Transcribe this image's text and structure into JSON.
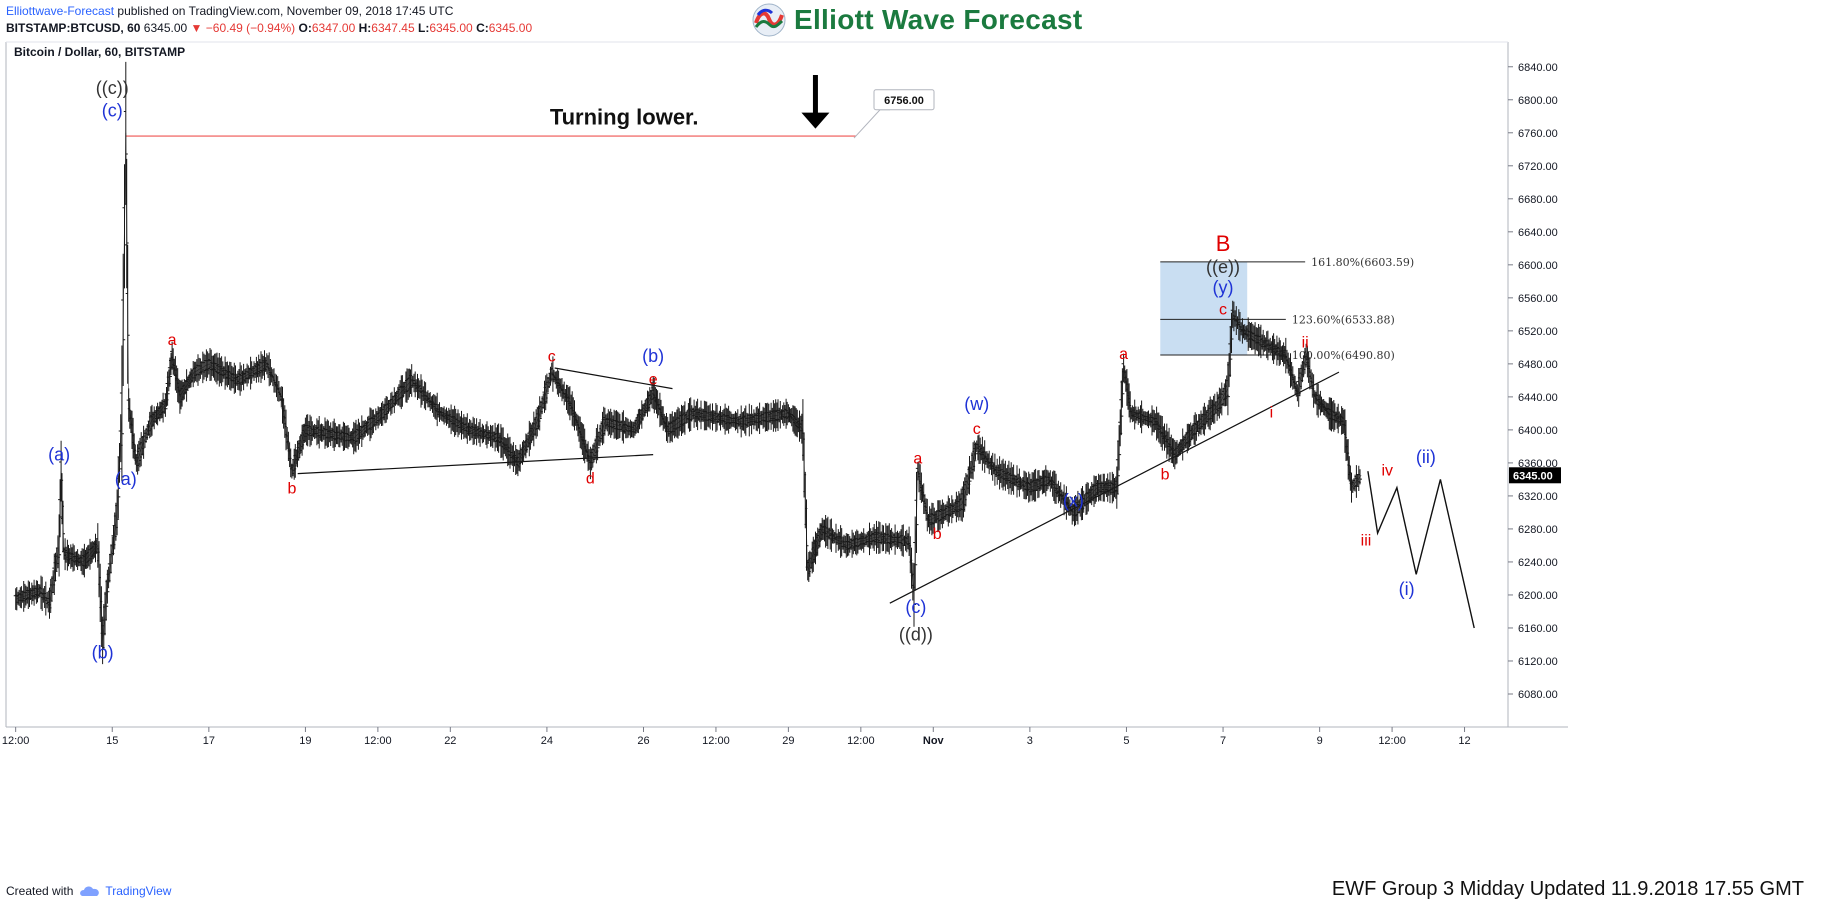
{
  "header": {
    "publisher": "Elliottwave-Forecast",
    "published_text": "published on TradingView.com, November 09, 2018 17:45 UTC",
    "symbol": "BITSTAMP:BTCUSD, 60",
    "last": "6345.00",
    "change": "−60.49 (−0.94%)",
    "open_label": "O:",
    "open": "6347.00",
    "high_label": "H:",
    "high": "6347.45",
    "low_label": "L:",
    "low": "6345.00",
    "close_label": "C:",
    "close": "6345.00"
  },
  "logo": {
    "text": "Elliott Wave Forecast"
  },
  "footer": {
    "created_with": "Created with",
    "tradingview": "TradingView",
    "update_note": "EWF Group 3 Midday Updated 11.9.2018 17.55 GMT"
  },
  "chart_data": {
    "type": "line",
    "title": "Bitcoin / Dollar, 60, BITSTAMP",
    "ylim": [
      6040,
      6870
    ],
    "y_ticks": [
      6080,
      6120,
      6160,
      6200,
      6240,
      6280,
      6320,
      6360,
      6400,
      6440,
      6480,
      6520,
      6560,
      6600,
      6640,
      6680,
      6720,
      6760,
      6800,
      6840
    ],
    "x_ticks": [
      {
        "t": 0,
        "label": "12:00"
      },
      {
        "t": 1,
        "label": "15"
      },
      {
        "t": 2,
        "label": "17"
      },
      {
        "t": 3,
        "label": "19"
      },
      {
        "t": 3.75,
        "label": "12:00"
      },
      {
        "t": 4.5,
        "label": "22"
      },
      {
        "t": 5.5,
        "label": "24"
      },
      {
        "t": 6.5,
        "label": "26"
      },
      {
        "t": 7.25,
        "label": "12:00"
      },
      {
        "t": 8,
        "label": "29"
      },
      {
        "t": 8.75,
        "label": "12:00"
      },
      {
        "t": 9.5,
        "label": "Nov"
      },
      {
        "t": 10.5,
        "label": "3"
      },
      {
        "t": 11.5,
        "label": "5"
      },
      {
        "t": 12.5,
        "label": "7"
      },
      {
        "t": 13.5,
        "label": "9"
      },
      {
        "t": 14.25,
        "label": "12:00"
      },
      {
        "t": 15,
        "label": "12"
      }
    ],
    "current_price": 6345.0,
    "price_path": [
      [
        0.0,
        6195
      ],
      [
        0.25,
        6205
      ],
      [
        0.35,
        6190
      ],
      [
        0.45,
        6260
      ],
      [
        0.47,
        6350
      ],
      [
        0.5,
        6250
      ],
      [
        0.7,
        6240
      ],
      [
        0.85,
        6260
      ],
      [
        0.9,
        6145
      ],
      [
        0.95,
        6210
      ],
      [
        1.05,
        6300
      ],
      [
        1.1,
        6420
      ],
      [
        1.14,
        6760
      ],
      [
        1.17,
        6430
      ],
      [
        1.25,
        6360
      ],
      [
        1.4,
        6410
      ],
      [
        1.55,
        6430
      ],
      [
        1.62,
        6490
      ],
      [
        1.7,
        6440
      ],
      [
        1.85,
        6470
      ],
      [
        2.0,
        6480
      ],
      [
        2.3,
        6460
      ],
      [
        2.6,
        6480
      ],
      [
        2.75,
        6440
      ],
      [
        2.86,
        6350
      ],
      [
        3.0,
        6400
      ],
      [
        3.5,
        6390
      ],
      [
        3.8,
        6420
      ],
      [
        4.1,
        6460
      ],
      [
        4.4,
        6420
      ],
      [
        4.7,
        6400
      ],
      [
        5.0,
        6390
      ],
      [
        5.2,
        6360
      ],
      [
        5.4,
        6410
      ],
      [
        5.55,
        6470
      ],
      [
        5.75,
        6430
      ],
      [
        5.95,
        6360
      ],
      [
        6.1,
        6410
      ],
      [
        6.4,
        6400
      ],
      [
        6.6,
        6445
      ],
      [
        6.75,
        6400
      ],
      [
        7.0,
        6420
      ],
      [
        7.5,
        6410
      ],
      [
        8.0,
        6420
      ],
      [
        8.15,
        6400
      ],
      [
        8.2,
        6230
      ],
      [
        8.35,
        6280
      ],
      [
        8.6,
        6260
      ],
      [
        8.9,
        6270
      ],
      [
        9.25,
        6265
      ],
      [
        9.3,
        6200
      ],
      [
        9.34,
        6350
      ],
      [
        9.45,
        6290
      ],
      [
        9.8,
        6310
      ],
      [
        9.95,
        6380
      ],
      [
        10.15,
        6350
      ],
      [
        10.5,
        6330
      ],
      [
        10.7,
        6340
      ],
      [
        10.95,
        6300
      ],
      [
        11.2,
        6330
      ],
      [
        11.4,
        6330
      ],
      [
        11.47,
        6475
      ],
      [
        11.55,
        6420
      ],
      [
        11.8,
        6410
      ],
      [
        12.0,
        6370
      ],
      [
        12.2,
        6400
      ],
      [
        12.45,
        6430
      ],
      [
        12.55,
        6450
      ],
      [
        12.6,
        6540
      ],
      [
        12.7,
        6520
      ],
      [
        13.0,
        6500
      ],
      [
        13.15,
        6490
      ],
      [
        13.27,
        6445
      ],
      [
        13.36,
        6490
      ],
      [
        13.45,
        6440
      ],
      [
        13.6,
        6420
      ],
      [
        13.75,
        6410
      ],
      [
        13.83,
        6330
      ],
      [
        13.93,
        6345
      ]
    ],
    "projection_path": [
      [
        14.0,
        6350
      ],
      [
        14.1,
        6275
      ],
      [
        14.3,
        6330
      ],
      [
        14.5,
        6225
      ],
      [
        14.75,
        6340
      ],
      [
        15.1,
        6160
      ]
    ],
    "resistance_line": {
      "price": 6756.0,
      "t_start": 1.14,
      "t_end": 8.7
    },
    "price_tag": {
      "label": "6756.00",
      "price": 6800
    },
    "annotation": {
      "text": "Turning lower.",
      "t": 6.3,
      "price": 6770
    },
    "arrow": {
      "t": 8.28,
      "price_top": 6830,
      "price_bottom": 6765
    },
    "trendlines": [
      {
        "t1": 2.92,
        "p1": 6347,
        "t2": 6.6,
        "p2": 6370
      },
      {
        "t1": 5.58,
        "p1": 6475,
        "t2": 6.8,
        "p2": 6450
      },
      {
        "t1": 9.05,
        "p1": 6190,
        "t2": 13.7,
        "p2": 6470
      }
    ],
    "fib_box": {
      "t_start": 11.85,
      "t_end": 12.75,
      "p_low": 6490.8,
      "p_high": 6603.59
    },
    "fib_levels": [
      {
        "label": "161.80%(6603.59)",
        "price": 6603.59,
        "t_end": 13.35
      },
      {
        "label": "123.60%(6533.88)",
        "price": 6533.88,
        "t_end": 13.15
      },
      {
        "label": "100.00%(6490.80)",
        "price": 6490.8,
        "t_end": 13.15
      }
    ],
    "wave_labels": [
      {
        "text": "((c))",
        "t": 1.0,
        "price": 6807,
        "color": "#333333",
        "size": 18
      },
      {
        "text": "(c)",
        "t": 1.0,
        "price": 6780,
        "color": "#1f33d6",
        "size": 18
      },
      {
        "text": "(a)",
        "t": 0.45,
        "price": 6363,
        "color": "#1f33d6",
        "size": 18
      },
      {
        "text": "(b)",
        "t": 0.9,
        "price": 6123,
        "color": "#1f33d6",
        "size": 18
      },
      {
        "text": "(a)",
        "t": 1.14,
        "price": 6333,
        "color": "#1f33d6",
        "size": 18
      },
      {
        "text": "a",
        "t": 1.62,
        "price": 6503,
        "color": "#e00000",
        "size": 16
      },
      {
        "text": "b",
        "t": 2.86,
        "price": 6323,
        "color": "#e00000",
        "size": 16
      },
      {
        "text": "c",
        "t": 5.55,
        "price": 6483,
        "color": "#e00000",
        "size": 16
      },
      {
        "text": "d",
        "t": 5.95,
        "price": 6335,
        "color": "#e00000",
        "size": 16
      },
      {
        "text": "(b)",
        "t": 6.6,
        "price": 6482,
        "color": "#1f33d6",
        "size": 18
      },
      {
        "text": "e",
        "t": 6.6,
        "price": 6455,
        "color": "#e00000",
        "size": 16
      },
      {
        "text": "a",
        "t": 9.34,
        "price": 6359,
        "color": "#e00000",
        "size": 16
      },
      {
        "text": "b",
        "t": 9.54,
        "price": 6268,
        "color": "#e00000",
        "size": 16
      },
      {
        "text": "(c)",
        "t": 9.32,
        "price": 6178,
        "color": "#1f33d6",
        "size": 18
      },
      {
        "text": "((d))",
        "t": 9.32,
        "price": 6145,
        "color": "#333333",
        "size": 18
      },
      {
        "text": "(w)",
        "t": 9.95,
        "price": 6424,
        "color": "#1f33d6",
        "size": 18
      },
      {
        "text": "c",
        "t": 9.95,
        "price": 6395,
        "color": "#e00000",
        "size": 16
      },
      {
        "text": "(x)",
        "t": 10.95,
        "price": 6307,
        "color": "#1f33d6",
        "size": 18
      },
      {
        "text": "a",
        "t": 11.47,
        "price": 6486,
        "color": "#e00000",
        "size": 16
      },
      {
        "text": "b",
        "t": 11.9,
        "price": 6340,
        "color": "#e00000",
        "size": 16
      },
      {
        "text": "B",
        "t": 12.5,
        "price": 6617,
        "color": "#e00000",
        "size": 22
      },
      {
        "text": "((e))",
        "t": 12.5,
        "price": 6590,
        "color": "#333333",
        "size": 18
      },
      {
        "text": "(y)",
        "t": 12.5,
        "price": 6565,
        "color": "#1f33d6",
        "size": 18
      },
      {
        "text": "c",
        "t": 12.5,
        "price": 6540,
        "color": "#e00000",
        "size": 16
      },
      {
        "text": "ii",
        "t": 13.35,
        "price": 6500,
        "color": "#e00000",
        "size": 16
      },
      {
        "text": "i",
        "t": 13.0,
        "price": 6415,
        "color": "#e00000",
        "size": 16
      },
      {
        "text": "iii",
        "t": 13.98,
        "price": 6260,
        "color": "#e00000",
        "size": 16
      },
      {
        "text": "iv",
        "t": 14.2,
        "price": 6345,
        "color": "#e00000",
        "size": 16
      },
      {
        "text": "(ii)",
        "t": 14.6,
        "price": 6360,
        "color": "#1f33d6",
        "size": 18
      },
      {
        "text": "(i)",
        "t": 14.4,
        "price": 6200,
        "color": "#1f33d6",
        "size": 18
      }
    ]
  }
}
